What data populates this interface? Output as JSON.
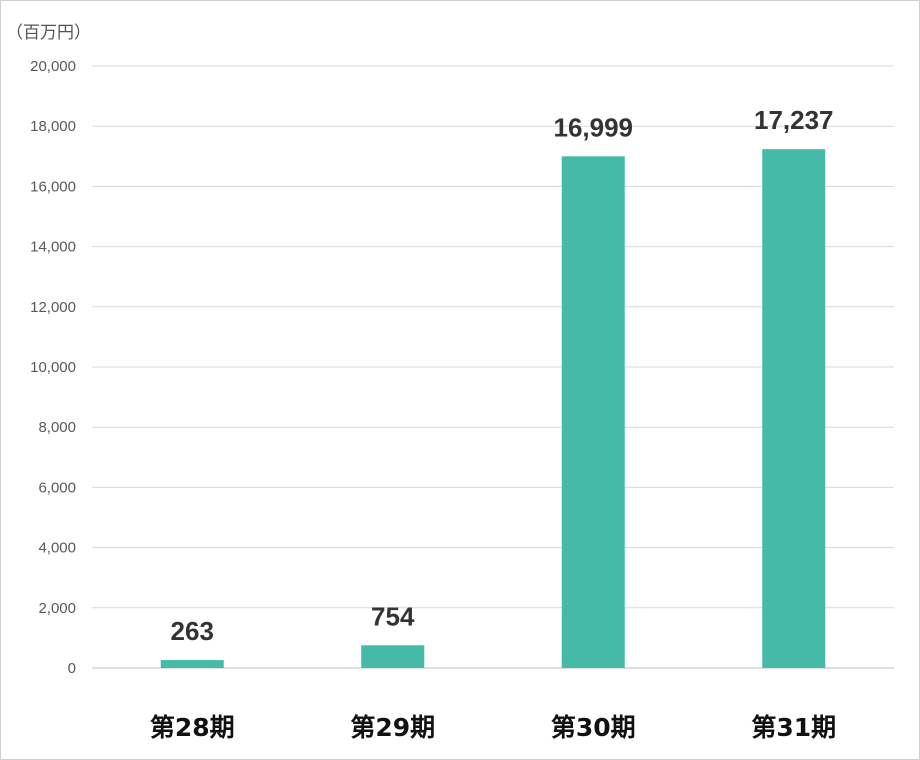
{
  "chart_data": {
    "type": "bar",
    "unit_label": "（百万円）",
    "categories": [
      "第28期",
      "第29期",
      "第30期",
      "第31期"
    ],
    "values": [
      263,
      754,
      16999,
      17237
    ],
    "data_labels": [
      "263",
      "754",
      "16,999",
      "17,237"
    ],
    "ylim": [
      0,
      20000
    ],
    "yticks": [
      0,
      2000,
      4000,
      6000,
      8000,
      10000,
      12000,
      14000,
      16000,
      18000,
      20000
    ],
    "ytick_labels": [
      "0",
      "2,000",
      "4,000",
      "6,000",
      "8,000",
      "10,000",
      "12,000",
      "14,000",
      "16,000",
      "18,000",
      "20,000"
    ],
    "grid": true,
    "legend": "none",
    "colors": {
      "bar": "#45bba7",
      "grid": "#d9d9d9"
    }
  }
}
